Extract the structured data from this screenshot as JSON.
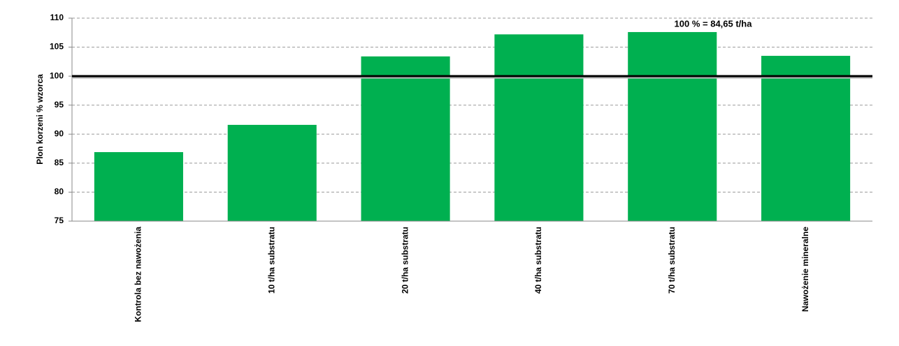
{
  "chart_data": {
    "type": "bar",
    "y_label": "Plon korzeni % wzorca",
    "categories": [
      "Kontrola bez nawożenia",
      "10 t/ha substratu",
      "20 t/ha substratu",
      "40 t/ha substratu",
      "70 t/ha substratu",
      "Nawożenie mineralne"
    ],
    "values": [
      86.9,
      91.6,
      103.4,
      107.2,
      107.6,
      103.5
    ],
    "color": "#00b050",
    "ylim": [
      75,
      110
    ],
    "yticks": [
      75,
      80,
      85,
      90,
      95,
      100,
      105,
      110
    ],
    "grid": true,
    "reference_line": 100,
    "annotation": "100 % = 84,65 t/ha"
  }
}
